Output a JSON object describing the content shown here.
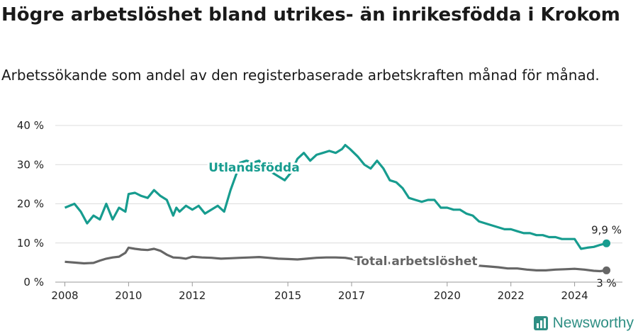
{
  "title": "Högre arbetslöshet bland utrikes- än inrikesfödda i Krokom",
  "subtitle": "Arbetssökande som andel av den registerbaserade arbetskraften månad för månad.",
  "brand": "Newsworthy",
  "colors": {
    "foreign": "#179c8f",
    "total": "#666666",
    "grid": "#dcdcdc"
  },
  "chart_data": {
    "type": "line",
    "title": "Högre arbetslöshet bland utrikes- än inrikesfödda i Krokom",
    "subtitle": "Arbetssökande som andel av den registerbaserade arbetskraften månad för månad.",
    "x_ticks": [
      "2008",
      "2010",
      "2012",
      "2015",
      "2017",
      "2020",
      "2022",
      "2024"
    ],
    "y_ticks": [
      "0 %",
      "10 %",
      "20 %",
      "30 %",
      "40 %"
    ],
    "ylim": [
      0,
      40
    ],
    "xlim": [
      2007.7,
      2025.5
    ],
    "grid": true,
    "series": [
      {
        "name": "Utlandsfödda",
        "end_label": "9,9 %",
        "x": [
          2008.0,
          2008.3,
          2008.5,
          2008.7,
          2008.9,
          2009.1,
          2009.3,
          2009.5,
          2009.7,
          2009.9,
          2010.0,
          2010.2,
          2010.4,
          2010.6,
          2010.8,
          2011.0,
          2011.2,
          2011.4,
          2011.5,
          2011.6,
          2011.8,
          2012.0,
          2012.2,
          2012.4,
          2012.6,
          2012.8,
          2013.0,
          2013.2,
          2013.4,
          2013.5,
          2013.7,
          2013.9,
          2014.1,
          2014.3,
          2014.5,
          2014.7,
          2014.9,
          2015.1,
          2015.3,
          2015.5,
          2015.7,
          2015.9,
          2016.1,
          2016.3,
          2016.5,
          2016.7,
          2016.8,
          2016.95,
          2017.2,
          2017.4,
          2017.6,
          2017.8,
          2018.0,
          2018.2,
          2018.4,
          2018.6,
          2018.8,
          2019.0,
          2019.2,
          2019.4,
          2019.6,
          2019.8,
          2020.0,
          2020.2,
          2020.4,
          2020.6,
          2020.8,
          2021.0,
          2021.2,
          2021.4,
          2021.6,
          2021.8,
          2022.0,
          2022.2,
          2022.4,
          2022.6,
          2022.8,
          2023.0,
          2023.2,
          2023.4,
          2023.6,
          2023.8,
          2024.0,
          2024.2,
          2024.4,
          2024.6,
          2024.8,
          2025.0
        ],
        "values": [
          19,
          20,
          18,
          15,
          17,
          16,
          20,
          16,
          19,
          18,
          22.5,
          22.8,
          22,
          21.5,
          23.5,
          22,
          21,
          17,
          19,
          18,
          19.5,
          18.5,
          19.5,
          17.5,
          18.5,
          19.5,
          18,
          23.5,
          28,
          30.5,
          31,
          30.5,
          31,
          29,
          28,
          27,
          26,
          28,
          31.5,
          33,
          31,
          32.5,
          33,
          33.5,
          33,
          34,
          35,
          34,
          32,
          30,
          29,
          31,
          29,
          26,
          25.5,
          24,
          21.5,
          21,
          20.5,
          21,
          21,
          19,
          19,
          18.5,
          18.5,
          17.5,
          17,
          15.5,
          15,
          14.5,
          14,
          13.5,
          13.5,
          13,
          12.5,
          12.5,
          12,
          12,
          11.5,
          11.5,
          11,
          11,
          11,
          8.5,
          8.8,
          9,
          9.5,
          9.9
        ]
      },
      {
        "name": "Total arbetslöshet",
        "end_label": "3 %",
        "x": [
          2008.0,
          2008.3,
          2008.6,
          2008.9,
          2009.1,
          2009.3,
          2009.5,
          2009.7,
          2009.9,
          2010.0,
          2010.2,
          2010.4,
          2010.6,
          2010.8,
          2011.0,
          2011.2,
          2011.4,
          2011.6,
          2011.8,
          2012.0,
          2012.3,
          2012.6,
          2012.9,
          2013.2,
          2013.5,
          2013.8,
          2014.1,
          2014.4,
          2014.7,
          2015.0,
          2015.3,
          2015.6,
          2015.9,
          2016.2,
          2016.5,
          2016.8,
          2017.1,
          2017.4,
          2017.7,
          2018.0,
          2018.3,
          2018.6,
          2018.9,
          2019.2,
          2019.5,
          2019.8,
          2020.1,
          2020.4,
          2020.7,
          2021.0,
          2021.3,
          2021.6,
          2021.9,
          2022.2,
          2022.5,
          2022.8,
          2023.1,
          2023.4,
          2023.7,
          2024.0,
          2024.3,
          2024.6,
          2024.8,
          2025.0
        ],
        "values": [
          5.2,
          5,
          4.8,
          4.9,
          5.5,
          6,
          6.3,
          6.5,
          7.5,
          8.8,
          8.5,
          8.3,
          8.2,
          8.5,
          8,
          7,
          6.3,
          6.2,
          6,
          6.5,
          6.3,
          6.2,
          6,
          6.1,
          6.2,
          6.3,
          6.4,
          6.2,
          6,
          5.9,
          5.8,
          6,
          6.2,
          6.3,
          6.3,
          6.2,
          5.8,
          5.4,
          5.2,
          5,
          4.8,
          4.6,
          4.5,
          4.4,
          4.3,
          4.2,
          4.5,
          4.6,
          4.5,
          4.2,
          4,
          3.8,
          3.5,
          3.5,
          3.2,
          3,
          3,
          3.2,
          3.3,
          3.4,
          3.2,
          2.9,
          2.8,
          3
        ]
      }
    ]
  }
}
